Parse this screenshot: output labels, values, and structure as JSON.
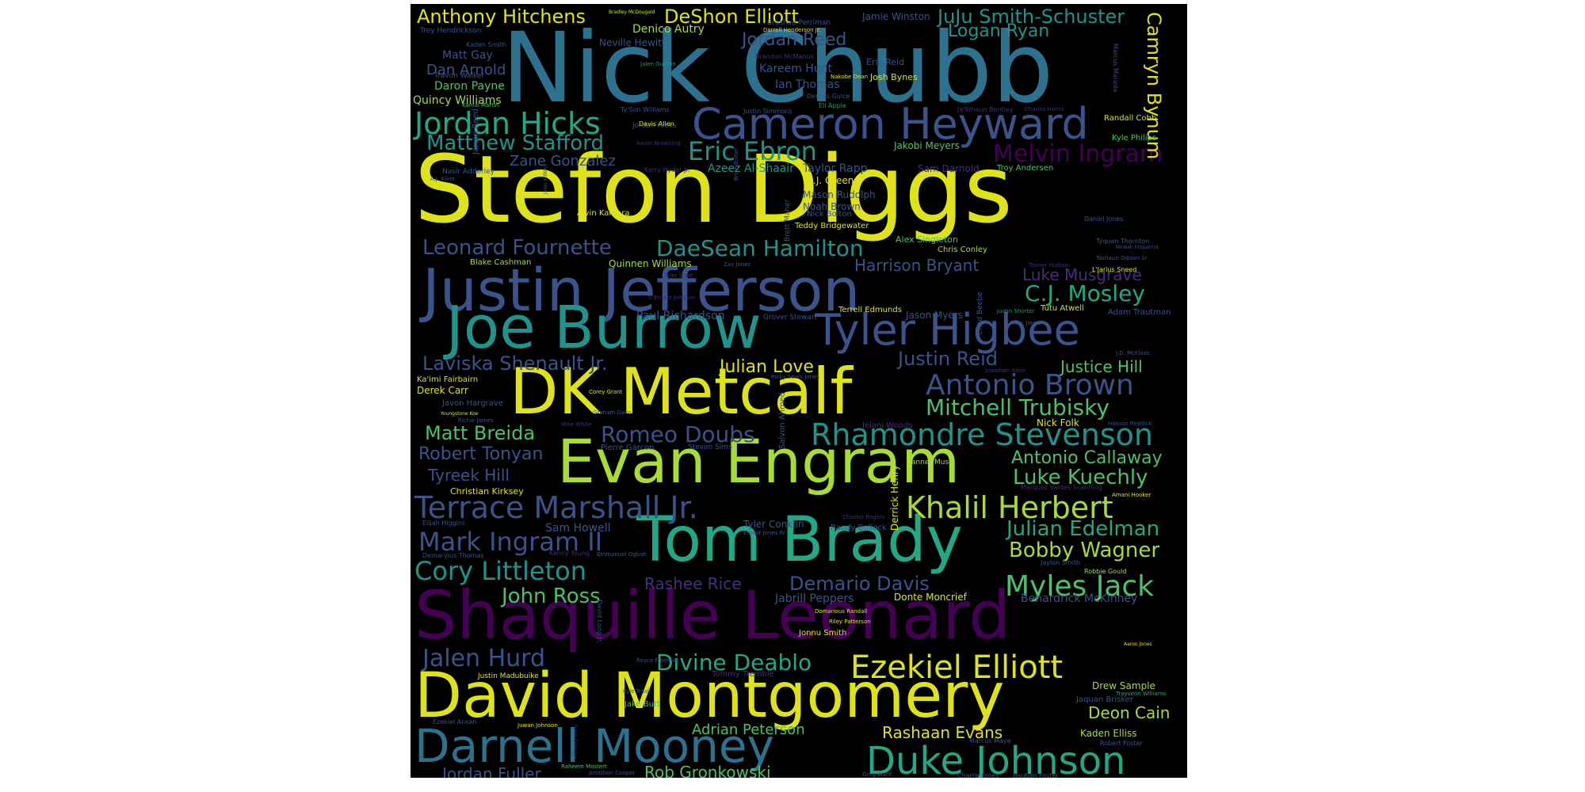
{
  "colors": {
    "background": "#000000",
    "yellow": "#dde318",
    "lime": "#a8db34",
    "green": "#4ac26d",
    "teal": "#22a884",
    "cyan": "#1f948c",
    "blue": "#2c728e",
    "indigo": "#3b528b",
    "purple": "#472d7b",
    "violet": "#440154"
  },
  "words": {
    "w0": "Nick Chubb",
    "w1": "Stefon Diggs",
    "w2": "Justin Jefferson",
    "w3": "Joe Burrow",
    "w4": "Tyler Higbee",
    "w5": "DK Metcalf",
    "w6": "Evan Engram",
    "w7": "Tom Brady",
    "w8": "Shaquille Leonard",
    "w9": "David Montgomery",
    "w10": "Darnell Mooney",
    "w11": "Duke Johnson",
    "w12": "Cameron Heyward",
    "w13": "Jordan Hicks",
    "w14": "Matthew Stafford",
    "w15": "Eric Ebron",
    "w16": "Melvin Ingram",
    "w17": "Anthony Hitchens",
    "w18": "DeShon Elliott",
    "w19": "JuJu Smith-Schuster",
    "w20": "Jordan Reed",
    "w21": "Logan Ryan",
    "w22": "Camryn Bynum",
    "w23": "Leonard Fournette",
    "w24": "DaeSean Hamilton",
    "w25": "Luke Musgrave",
    "w26": "C.J. Mosley",
    "w27": "Harrison Bryant",
    "w28": "Laviska Shenault Jr.",
    "w29": "Julian Love",
    "w30": "Justin Reid",
    "w31": "Justice Hill",
    "w32": "Antonio Brown",
    "w33": "Mitchell Trubisky",
    "w34": "Matt Breida",
    "w35": "Romeo Doubs",
    "w36": "Rhamondre Stevenson",
    "w37": "Robert Tonyan",
    "w38": "Antonio Callaway",
    "w39": "Luke Kuechly",
    "w40": "Tyreek Hill",
    "w41": "Terrace Marshall Jr.",
    "w42": "Khalil Herbert",
    "w43": "Julian Edelman",
    "w44": "Mark Ingram II",
    "w45": "Bobby Wagner",
    "w46": "Cory Littleton",
    "w47": "Myles Jack",
    "w48": "Demario Davis",
    "w49": "Rashee Rice",
    "w50": "John Ross",
    "w51": "Jalen Hurd",
    "w52": "Divine Deablo",
    "w53": "Ezekiel Elliott",
    "w54": "Adrian Peterson",
    "w55": "Rashaan Evans",
    "w56": "Deon Cain",
    "w57": "Rob Gronkowski",
    "w58": "Jordan Fuller",
    "w59": "Zane Gonzalez",
    "w60": "Dan Arnold",
    "w61": "Matt Gay",
    "w62": "Daron Payne",
    "w63": "Quincy Williams",
    "w64": "Kareem Hunt",
    "w65": "Ian Thomas",
    "w66": "Denico Autry",
    "w67": "Neville Hewitt",
    "w68": "Jamie Winston",
    "w69": "Eric Reid",
    "w70": "Josh Bynes",
    "w71": "Taylor Rapp",
    "w72": "Azeez Al-Shaair",
    "w73": "A.J. Green",
    "w74": "Mason Rudolph",
    "w75": "Noah Brown",
    "w76": "Nick Bolton",
    "w77": "Teddy Bridgewater",
    "w78": "Jakobi Meyers",
    "w79": "Sam Darnold",
    "w80": "Troy Andersen",
    "w81": "Kyle Philips",
    "w82": "Randall Cobb",
    "w83": "Paul Richardson",
    "w84": "Jason Myers",
    "w85": "Terrell Edmunds",
    "w86": "Tutu Atwell",
    "w87": "Adam Trautman",
    "w88": "Quinnen Williams",
    "w89": "Blake Cashman",
    "w90": "Alex Singleton",
    "w91": "Chris Conley",
    "w92": "Alvin Kamara",
    "w93": "Ka'imi Fairbairn",
    "w94": "Derek Carr",
    "w95": "Javon Hargrave",
    "w96": "Nick Folk",
    "w97": "Pierre Garcon",
    "w98": "Steven Sims",
    "w99": "Christian Kirksey",
    "w100": "Sam Howell",
    "w101": "Tyler Conklin",
    "w102": "Randy Bullock",
    "w103": "Jabrill Peppers",
    "w104": "Donte Moncrief",
    "w105": "Benardrick McKinney",
    "w106": "Jonnu Smith",
    "w107": "Tommy Tremble",
    "w108": "Justin Madubuike",
    "w109": "Jake Butt",
    "w110": "Drew Sample",
    "w111": "Kaden Elliss",
    "w112": "Jaquan Brisker",
    "w113": "Jordan Hicks",
    "w114": "Derrick Henry",
    "w115": "Jarran Reed",
    "w116": "David Long Jr.",
    "w117": "Brett Maher",
    "w118": "Chad Beebe",
    "w119": "Marcus Mariota",
    "w120": "Salvon Ahmed",
    "w121": "Tanner Muse",
    "w122": "Trey Hendrickson",
    "w123": "Travon Walker",
    "w124": "Kaden Smith",
    "w125": "Jalen Guyton",
    "w126": "Brandon McManus",
    "w127": "Kamal Martin",
    "w128": "Davis Allen",
    "w129": "Ty'Son Williams",
    "w130": "Justin Simmons",
    "w131": "Eli Apple",
    "w132": "Ja'Whaun Bentley",
    "w133": "Charles Harris",
    "w134": "Nakobe Dean",
    "w135": "Derrius Guice",
    "w136": "Breshad Perriman",
    "w137": "Darrell Henderson Jr.",
    "w138": "Bradley McDougald",
    "w139": "Nasir Adderley",
    "w140": "Kerry Hyder Jr.",
    "w141": "Aaron Browning",
    "w142": "Daniel Jones",
    "w143": "Tyquan Thornton",
    "w144": "Tashaun Gipson Sr.",
    "w145": "Minkah Fitzpatrick",
    "w146": "L'Jarius Sneed",
    "w147": "Tanner Hudson",
    "w148": "Zay Jones",
    "w149": "Tyler Scott",
    "w150": "D'Ernest Johnson",
    "w151": "Grover Stewart",
    "w152": "Justin Shorter",
    "w153": "Mac Jones",
    "w154": "Jonathan Allen",
    "w155": "J.D. McKissic",
    "w156": "Ricky Seals-Jones",
    "w157": "Corey Grant",
    "w158": "Graham Gano",
    "w159": "Mike White",
    "w160": "Jelani Woods",
    "w161": "Hasson Reddick",
    "w162": "Youngstone Koe",
    "w163": "Richie James",
    "w164": "Marquez Valdes-Scantling",
    "w165": "Amani Hooker",
    "w166": "Chester Rogers",
    "w167": "Ernest Jones IV",
    "w168": "Elijah Higgins",
    "w169": "Kenny Young",
    "w170": "Emmanuel Ogbah",
    "w171": "Demaryius Thomas",
    "w172": "Jaylon Smith",
    "w173": "Robbie Gould",
    "w174": "Domarious Randall",
    "w175": "Riley Patterson",
    "w176": "Royce Freeman",
    "w177": "Aaron Jones",
    "w178": "Kyle Trask",
    "w179": "Trayveon Williams",
    "w180": "Ezekiel Ansah",
    "w181": "Juwan Johnson",
    "w182": "Marcus Maye",
    "w183": "Robert Foster",
    "w184": "Raheem Mostert",
    "w185": "Jonathon Cooper",
    "w186": "Greg Ward",
    "w187": "Charlie Jones",
    "w188": "Bauban Foster",
    "w189": "A.J. Klein",
    "w190": "Jalen Wilkins",
    "w191": "Brice Butler",
    "w192": "Tyree Gillespie"
  }
}
